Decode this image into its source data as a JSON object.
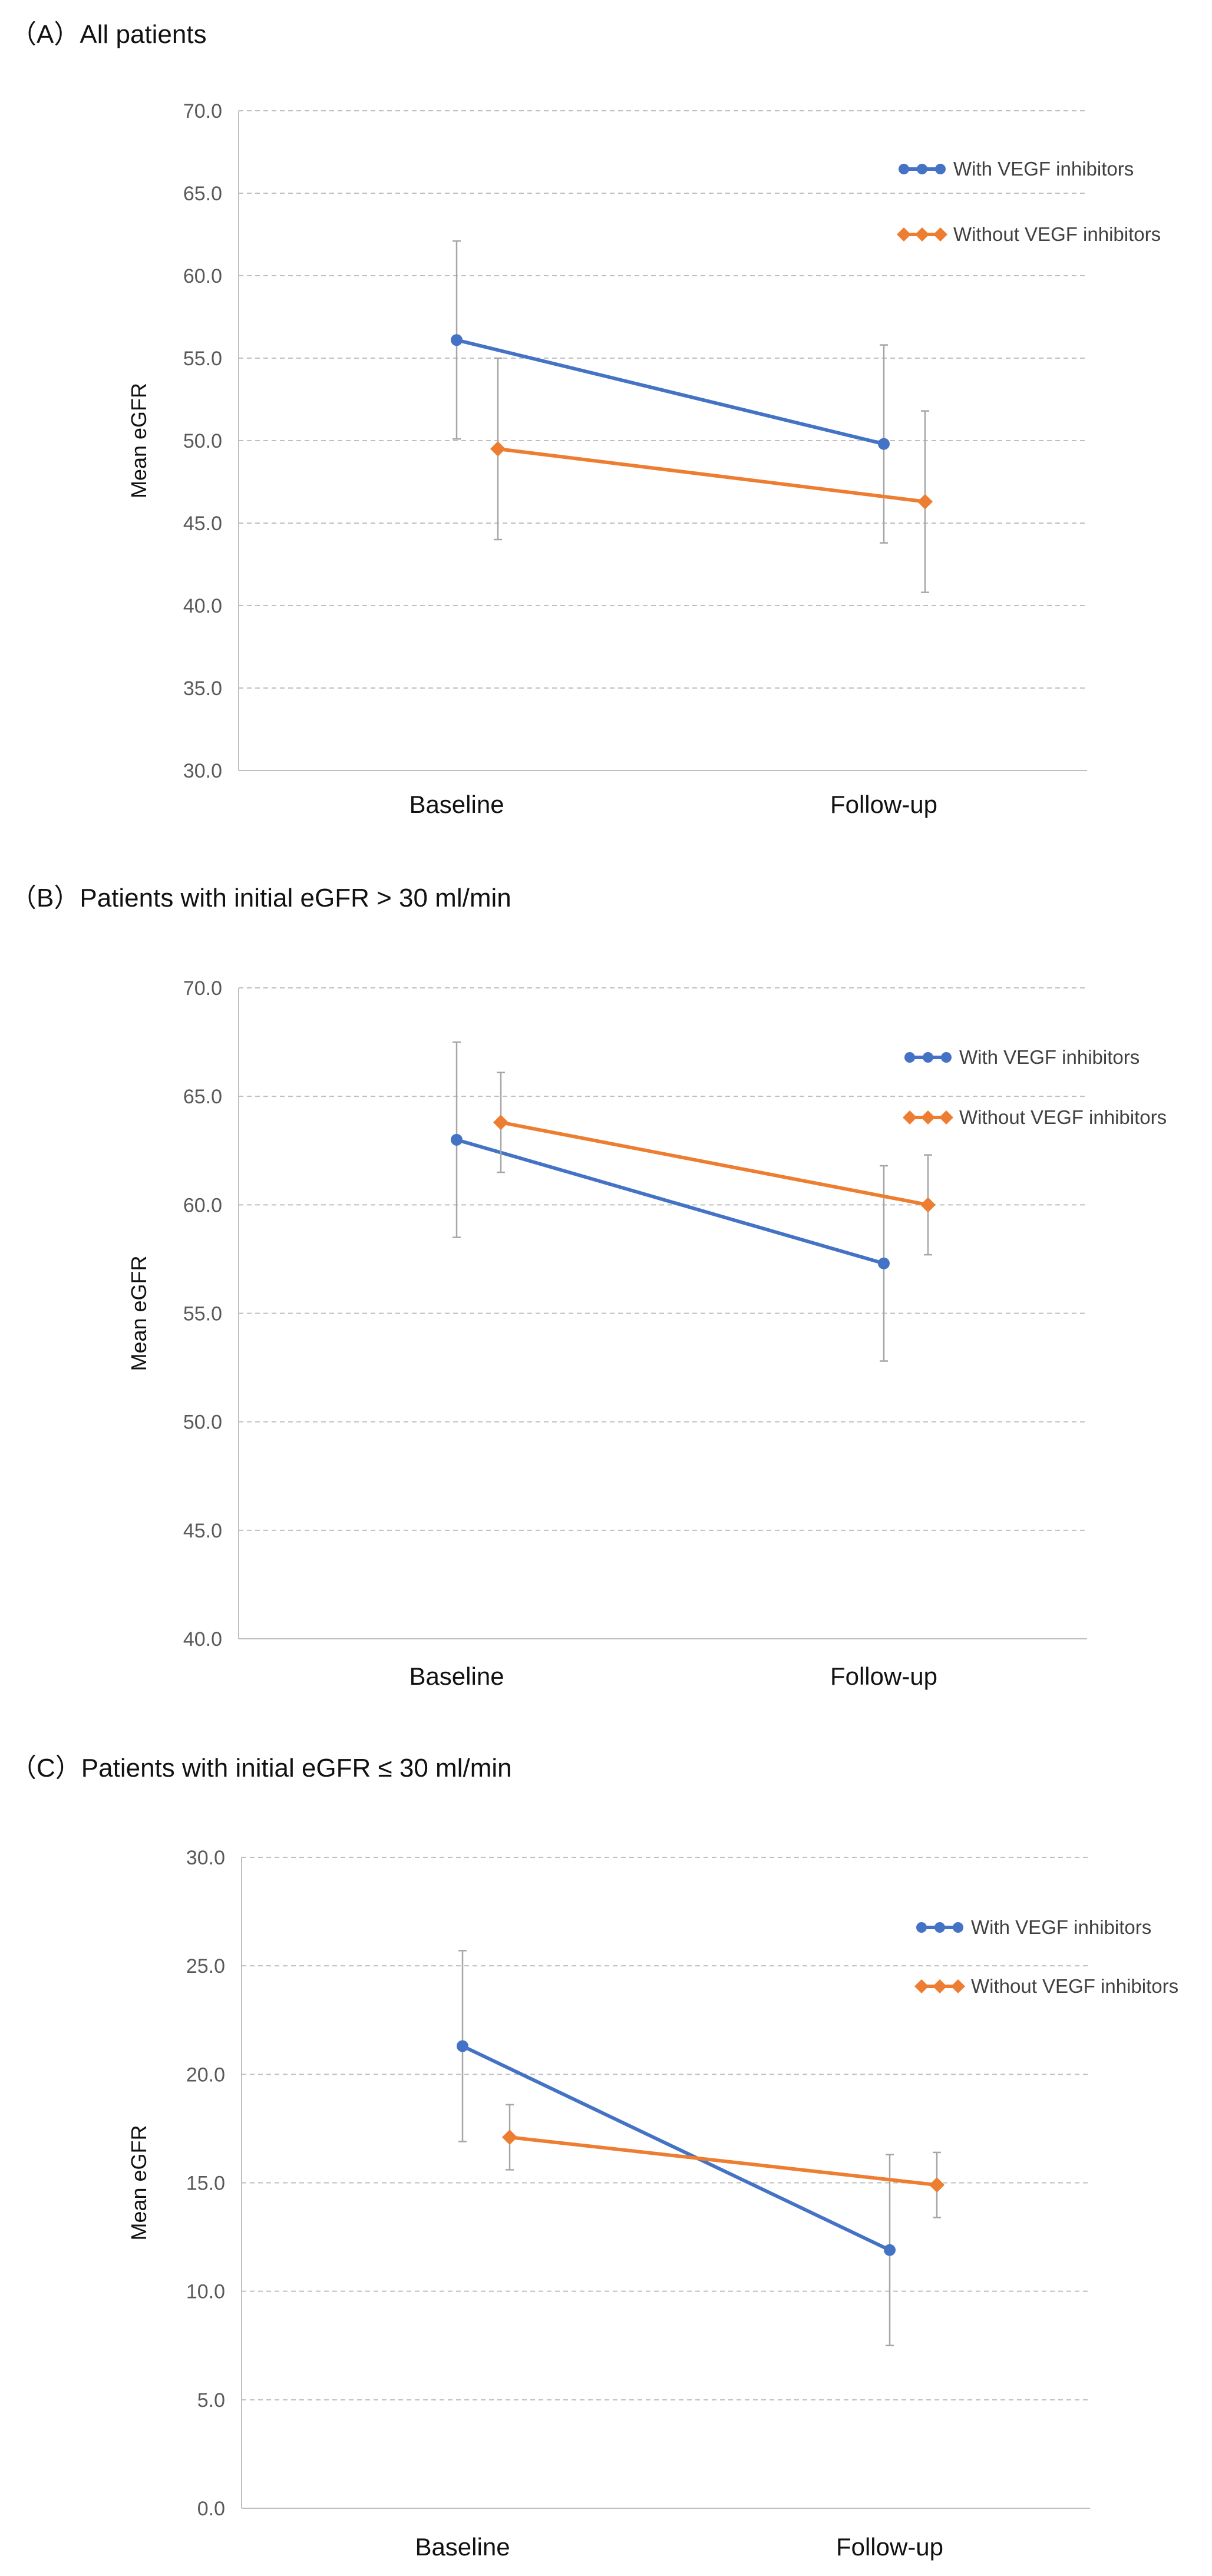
{
  "colors": {
    "with_vegf": "#4472C4",
    "without_vegf": "#ED7D31",
    "grid": "#BFBFBF",
    "errorbar": "#A6A6A6",
    "axis": "#BFBFBF"
  },
  "chart_data": [
    {
      "panel_title": "（A）All patients",
      "type": "line",
      "categories": [
        "Baseline",
        "Follow-up"
      ],
      "ylabel": "Mean eGFR",
      "ylim": [
        30.0,
        70.0
      ],
      "yticks": [
        "30.0",
        "35.0",
        "40.0",
        "45.0",
        "50.0",
        "55.0",
        "60.0",
        "65.0",
        "70.0"
      ],
      "legend_position": "top-right",
      "series": [
        {
          "name": "With VEGF inhibitors",
          "values": [
            56.1,
            49.8
          ],
          "errors": [
            6.0,
            6.0
          ]
        },
        {
          "name": "Without VEGF inhibitors",
          "values": [
            49.5,
            46.3
          ],
          "errors": [
            5.5,
            5.5
          ]
        }
      ]
    },
    {
      "panel_title": "（B）Patients with initial eGFR > 30 ml/min",
      "type": "line",
      "categories": [
        "Baseline",
        "Follow-up"
      ],
      "ylabel": "Mean eGFR",
      "ylim": [
        40.0,
        70.0
      ],
      "yticks": [
        "40.0",
        "45.0",
        "50.0",
        "55.0",
        "60.0",
        "65.0",
        "70.0"
      ],
      "legend_position": "top-right",
      "series": [
        {
          "name": "With VEGF inhibitors",
          "values": [
            63.0,
            57.3
          ],
          "errors": [
            4.5,
            4.5
          ]
        },
        {
          "name": "Without VEGF inhibitors",
          "values": [
            63.8,
            60.0
          ],
          "errors": [
            2.3,
            2.3
          ]
        }
      ]
    },
    {
      "panel_title": "（C）Patients with initial eGFR ≤ 30 ml/min",
      "type": "line",
      "categories": [
        "Baseline",
        "Follow-up"
      ],
      "ylabel": "Mean eGFR",
      "ylim": [
        0.0,
        30.0
      ],
      "yticks": [
        "0.0",
        "5.0",
        "10.0",
        "15.0",
        "20.0",
        "25.0",
        "30.0"
      ],
      "legend_position": "top-right",
      "series": [
        {
          "name": "With VEGF inhibitors",
          "values": [
            21.3,
            11.9
          ],
          "errors": [
            4.4,
            4.4
          ]
        },
        {
          "name": "Without VEGF inhibitors",
          "values": [
            17.1,
            14.9
          ],
          "errors": [
            1.5,
            1.5
          ]
        }
      ]
    }
  ]
}
